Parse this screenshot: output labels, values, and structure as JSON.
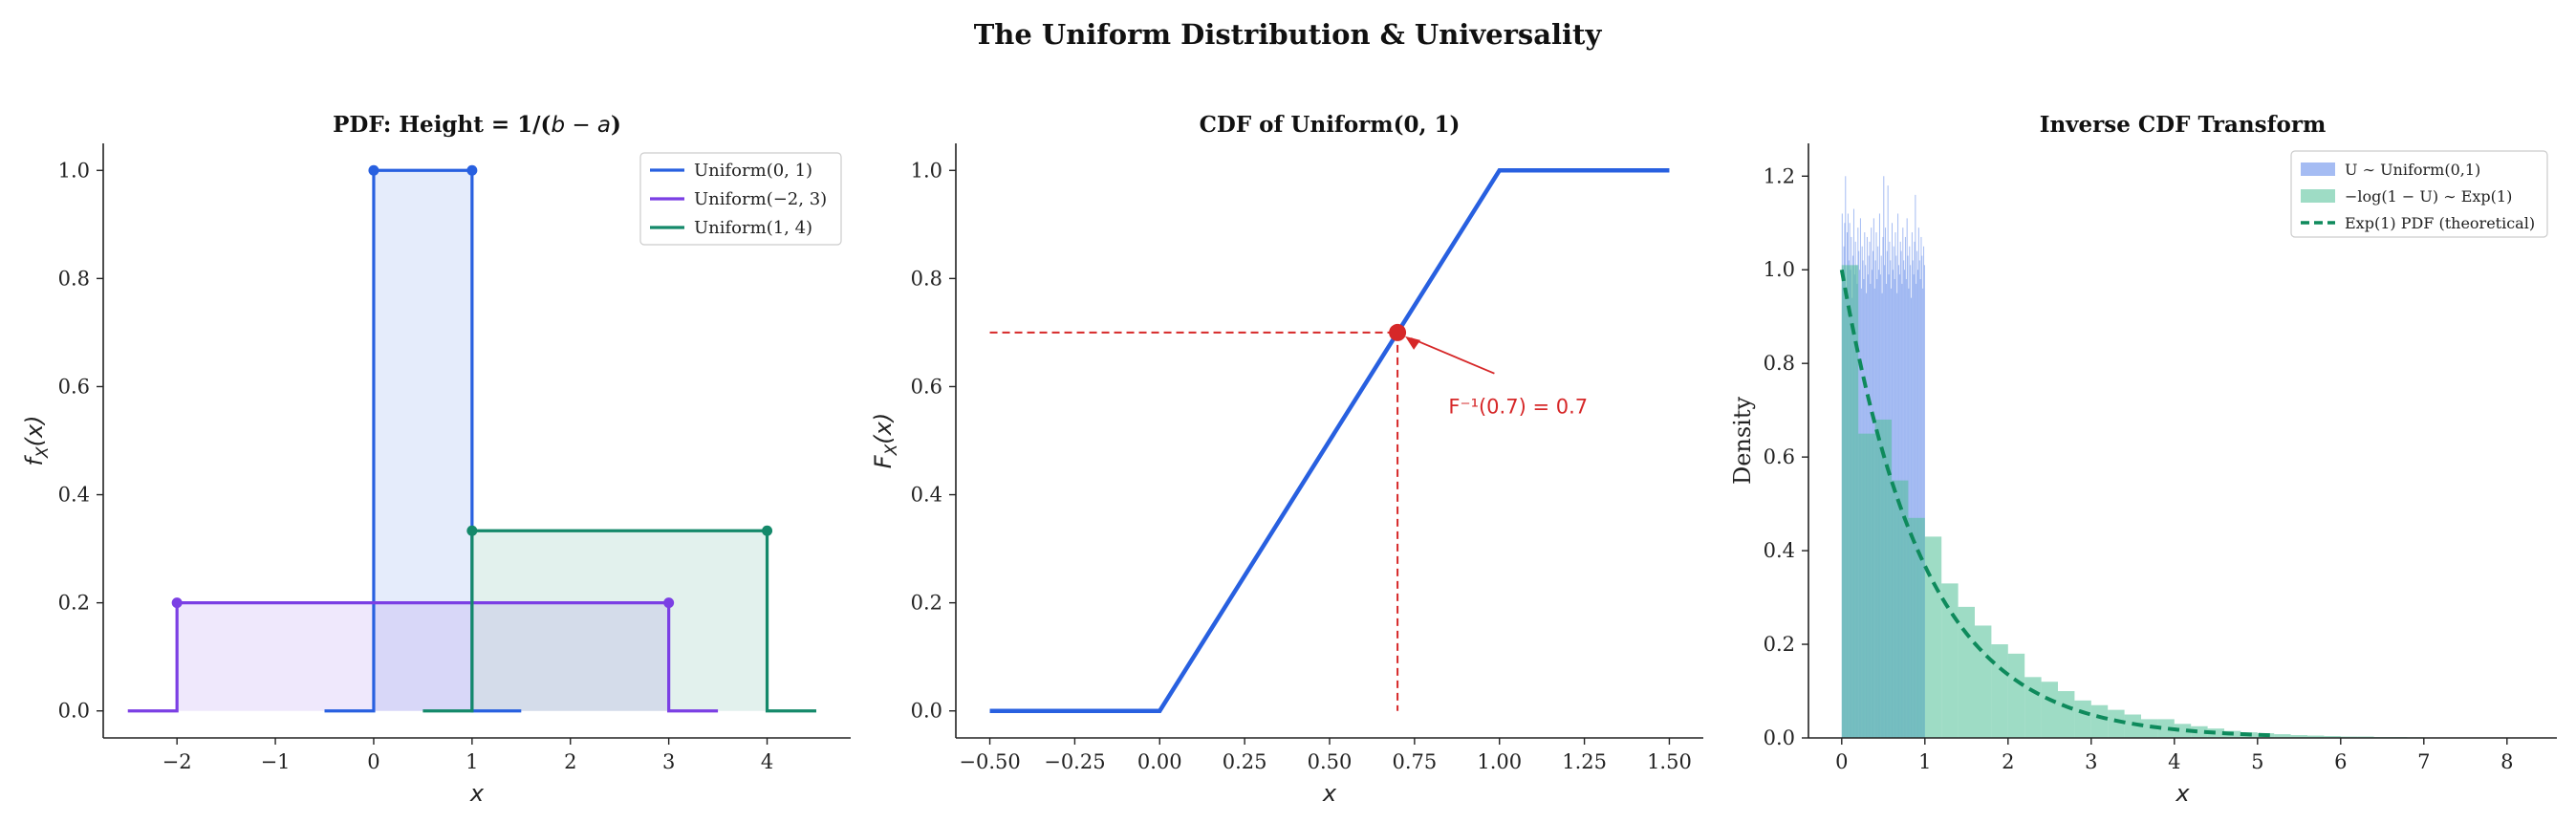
{
  "figure": {
    "suptitle": "The Uniform Distribution & Universality"
  },
  "chart_data": [
    {
      "type": "line",
      "title": "PDF: Height = 1/(b − a)",
      "xlabel": "x",
      "ylabel": "f_X(x)",
      "xlim": [
        -2.75,
        4.85
      ],
      "ylim": [
        -0.05,
        1.05
      ],
      "xticks": [
        -2,
        -1,
        0,
        1,
        2,
        3,
        4
      ],
      "yticks": [
        0.0,
        0.2,
        0.4,
        0.6,
        0.8,
        1.0
      ],
      "legend_position": "top-right",
      "series": [
        {
          "name": "Uniform(0, 1)",
          "color": "#2860e0",
          "a": 0,
          "b": 1,
          "height": 1.0,
          "x": [
            -0.5,
            0,
            0,
            1,
            1,
            1.5
          ],
          "y": [
            0,
            0,
            1.0,
            1.0,
            0,
            0
          ]
        },
        {
          "name": "Uniform(−2, 3)",
          "color": "#7b3fe4",
          "a": -2,
          "b": 3,
          "height": 0.2,
          "x": [
            -2.5,
            -2,
            -2,
            3,
            3,
            3.5
          ],
          "y": [
            0,
            0,
            0.2,
            0.2,
            0,
            0
          ]
        },
        {
          "name": "Uniform(1, 4)",
          "color": "#14896a",
          "a": 1,
          "b": 4,
          "height": 0.3333,
          "x": [
            0.5,
            1,
            1,
            4,
            4,
            4.5
          ],
          "y": [
            0,
            0,
            0.3333,
            0.3333,
            0,
            0
          ]
        }
      ]
    },
    {
      "type": "line",
      "title": "CDF of Uniform(0, 1)",
      "xlabel": "x",
      "ylabel": "F_X(x)",
      "xlim": [
        -0.6,
        1.6
      ],
      "ylim": [
        -0.05,
        1.05
      ],
      "xticks": [
        -0.5,
        -0.25,
        0.0,
        0.25,
        0.5,
        0.75,
        1.0,
        1.25,
        1.5
      ],
      "yticks": [
        0.0,
        0.2,
        0.4,
        0.6,
        0.8,
        1.0
      ],
      "series": [
        {
          "color": "#2860e0",
          "x": [
            -0.5,
            0,
            1,
            1.5
          ],
          "y": [
            0,
            0,
            1,
            1
          ]
        }
      ],
      "annotation": {
        "text": "F⁻¹(0.7) = 0.7",
        "point": [
          0.7,
          0.7
        ],
        "text_pos": [
          0.85,
          0.55
        ],
        "color": "#d62728"
      }
    },
    {
      "type": "bar",
      "title": "Inverse CDF Transform",
      "xlabel": "x",
      "ylabel": "Density",
      "xlim": [
        -0.4,
        8.6
      ],
      "ylim": [
        0,
        1.27
      ],
      "xticks": [
        0,
        1,
        2,
        3,
        4,
        5,
        6,
        7,
        8
      ],
      "yticks": [
        0.0,
        0.2,
        0.4,
        0.6,
        0.8,
        1.0,
        1.2
      ],
      "legend_position": "top-right",
      "series": [
        {
          "name": "U ∼ Uniform(0,1)",
          "color": "#7fa0ee",
          "bin_start": 0,
          "bin_width": 0.01,
          "values": [
            1.12,
            0.98,
            1.05,
            1.1,
            1.2,
            0.95,
            1.08,
            1.12,
            1.02,
            1.1,
            1.0,
            1.07,
            0.94,
            1.03,
            1.13,
            0.99,
            1.06,
            1.01,
            0.97,
            1.09,
            1.04,
            1.0,
            1.11,
            0.96,
            1.05,
            1.02,
            0.98,
            1.08,
            1.01,
            0.95,
            1.07,
            0.99,
            1.03,
            1.06,
            0.97,
            1.09,
            1.0,
            1.04,
            1.11,
            0.96,
            1.02,
            1.08,
            0.98,
            1.05,
            1.0,
            1.12,
            0.99,
            1.03,
            0.95,
            1.07,
            1.2,
            1.01,
            1.09,
            0.97,
            1.04,
            1.18,
            0.99,
            1.06,
            1.02,
            0.96,
            1.1,
            1.0,
            1.05,
            0.98,
            1.08,
            1.03,
            0.95,
            1.12,
            1.01,
            0.99,
            1.06,
            1.04,
            0.97,
            1.09,
            1.02,
            1.0,
            1.07,
            0.98,
            1.11,
            1.03,
            0.96,
            1.05,
            1.01,
            0.94,
            1.08,
            1.02,
            0.99,
            1.06,
            1.16,
            0.97,
            1.04,
            1.0,
            1.09,
            1.02,
            0.98,
            1.07,
            1.03,
            0.96,
            1.05,
            1.01
          ]
        },
        {
          "name": "−log(1 − U) ∼ Exp(1)",
          "color": "#4fbf95",
          "bin_start": 0,
          "bin_width": 0.2,
          "values": [
            1.01,
            0.65,
            0.68,
            0.55,
            0.47,
            0.43,
            0.33,
            0.28,
            0.24,
            0.2,
            0.18,
            0.13,
            0.12,
            0.1,
            0.08,
            0.07,
            0.06,
            0.05,
            0.04,
            0.04,
            0.03,
            0.025,
            0.02,
            0.015,
            0.012,
            0.01,
            0.008,
            0.006,
            0.005,
            0.004,
            0.003,
            0.003,
            0.002,
            0.002,
            0.0015,
            0.001,
            0.001,
            0.001,
            0.0,
            0.0,
            0.0,
            0.0
          ]
        },
        {
          "name": "Exp(1) PDF (theoretical)",
          "type": "line",
          "style": "dashed",
          "color": "#0e8a5c",
          "function": "exp(-x)",
          "x_range": [
            0,
            5.2
          ]
        }
      ]
    }
  ]
}
